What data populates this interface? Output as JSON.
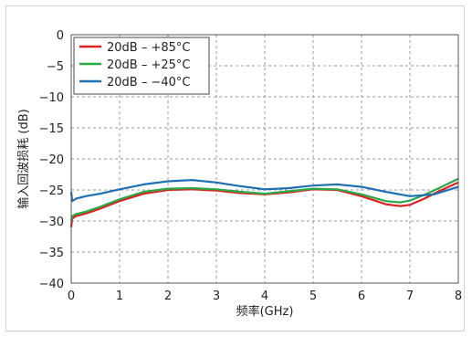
{
  "chart_data": {
    "type": "line",
    "title": "",
    "xlabel": "频率(GHz)",
    "ylabel": "输入回波损耗 (dB)",
    "xlim": [
      0,
      8
    ],
    "ylim": [
      -40,
      0
    ],
    "x_ticks": [
      "0",
      "1",
      "2",
      "3",
      "4",
      "5",
      "6",
      "7",
      "8"
    ],
    "y_ticks": [
      "0",
      "−5",
      "−10",
      "−15",
      "−20",
      "−25",
      "−30",
      "−35",
      "−40"
    ],
    "grid": true,
    "legend_position": "top-left",
    "series": [
      {
        "name": "20dB – +85°C",
        "color": "#e0201f",
        "x": [
          0,
          0.02,
          0.1,
          0.3,
          0.6,
          1.0,
          1.5,
          2.0,
          2.5,
          3.0,
          3.5,
          4.0,
          4.5,
          5.0,
          5.5,
          6.0,
          6.5,
          6.8,
          7.0,
          7.3,
          7.6,
          8.0
        ],
        "y": [
          -31,
          -29.6,
          -29.2,
          -28.8,
          -28,
          -26.8,
          -25.6,
          -25.0,
          -24.9,
          -25.1,
          -25.5,
          -25.7,
          -25.4,
          -24.9,
          -25.0,
          -26.0,
          -27.3,
          -27.6,
          -27.4,
          -26.4,
          -25.2,
          -23.8
        ]
      },
      {
        "name": "20dB – +25°C",
        "color": "#2aa84a",
        "x": [
          0,
          0.02,
          0.1,
          0.3,
          0.6,
          1.0,
          1.5,
          2.0,
          2.5,
          3.0,
          3.5,
          4.0,
          4.5,
          5.0,
          5.5,
          6.0,
          6.5,
          6.8,
          7.0,
          7.3,
          7.6,
          8.0
        ],
        "y": [
          -30,
          -29.2,
          -28.9,
          -28.5,
          -27.7,
          -26.5,
          -25.3,
          -24.8,
          -24.7,
          -24.9,
          -25.3,
          -25.6,
          -25.2,
          -24.8,
          -24.9,
          -25.7,
          -26.8,
          -27.0,
          -26.7,
          -25.8,
          -24.7,
          -23.2
        ]
      },
      {
        "name": "20dB – −40°C",
        "color": "#1f6fb5",
        "x": [
          0,
          0.02,
          0.1,
          0.3,
          0.6,
          1.0,
          1.5,
          2.0,
          2.5,
          3.0,
          3.5,
          4.0,
          4.5,
          5.0,
          5.5,
          6.0,
          6.5,
          7.0,
          7.5,
          8.0
        ],
        "y": [
          -25.3,
          -26.8,
          -26.4,
          -26.0,
          -25.6,
          -24.9,
          -24.1,
          -23.6,
          -23.4,
          -23.8,
          -24.4,
          -24.9,
          -24.7,
          -24.3,
          -24.1,
          -24.5,
          -25.3,
          -26.0,
          -25.7,
          -24.5
        ]
      }
    ]
  }
}
